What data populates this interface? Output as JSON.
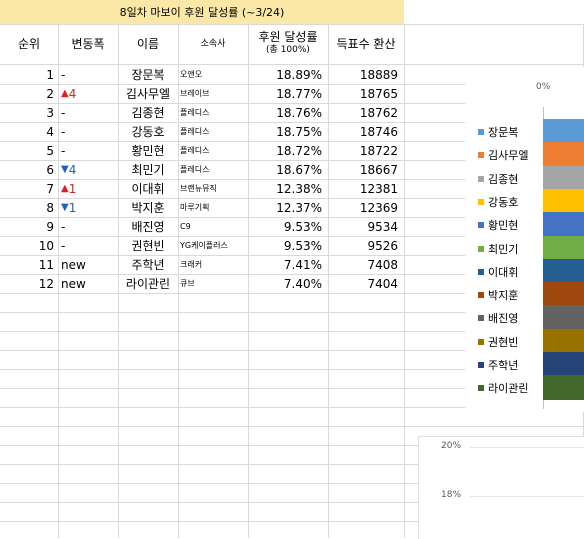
{
  "title": "8일차 마보이 후원 달성률 (~3/24)",
  "headers": {
    "rank": "순위",
    "change": "변동폭",
    "name": "이름",
    "agency": "소속사",
    "rate": "후원 달성률",
    "rate_sub": "(총 100%)",
    "votes": "득표수 환산"
  },
  "rows": [
    {
      "rank": "1",
      "change": "-",
      "dir": "",
      "name": "장문복",
      "agency": "오앤오",
      "rate": "18.89%",
      "votes": "18889"
    },
    {
      "rank": "2",
      "change": "4",
      "dir": "up",
      "name": "김사무엘",
      "agency": "브레이브",
      "rate": "18.77%",
      "votes": "18765"
    },
    {
      "rank": "3",
      "change": "-",
      "dir": "",
      "name": "김종현",
      "agency": "플레디스",
      "rate": "18.76%",
      "votes": "18762"
    },
    {
      "rank": "4",
      "change": "-",
      "dir": "",
      "name": "강동호",
      "agency": "플레디스",
      "rate": "18.75%",
      "votes": "18746"
    },
    {
      "rank": "5",
      "change": "-",
      "dir": "",
      "name": "황민현",
      "agency": "플레디스",
      "rate": "18.72%",
      "votes": "18722"
    },
    {
      "rank": "6",
      "change": "4",
      "dir": "down",
      "name": "최민기",
      "agency": "플레디스",
      "rate": "18.67%",
      "votes": "18667"
    },
    {
      "rank": "7",
      "change": "1",
      "dir": "up",
      "name": "이대휘",
      "agency": "브랜뉴뮤직",
      "rate": "12.38%",
      "votes": "12381"
    },
    {
      "rank": "8",
      "change": "1",
      "dir": "down",
      "name": "박지훈",
      "agency": "마루기획",
      "rate": "12.37%",
      "votes": "12369"
    },
    {
      "rank": "9",
      "change": "-",
      "dir": "",
      "name": "배진영",
      "agency": "C9",
      "rate": "9.53%",
      "votes": "9534"
    },
    {
      "rank": "10",
      "change": "-",
      "dir": "",
      "name": "권현빈",
      "agency": "YG케이플러스",
      "rate": "9.53%",
      "votes": "9526"
    },
    {
      "rank": "11",
      "change": "new",
      "dir": "",
      "name": "주학년",
      "agency": "크래커",
      "rate": "7.41%",
      "votes": "7408"
    },
    {
      "rank": "12",
      "change": "new",
      "dir": "",
      "name": "라이관린",
      "agency": "큐브",
      "rate": "7.40%",
      "votes": "7404"
    }
  ],
  "chart": {
    "axis_zero": "0%",
    "legend": [
      {
        "name": "장문복",
        "color": "#5b9bd5"
      },
      {
        "name": "김사무엘",
        "color": "#ed7d31"
      },
      {
        "name": "김종현",
        "color": "#a5a5a5"
      },
      {
        "name": "강동호",
        "color": "#ffc000"
      },
      {
        "name": "황민현",
        "color": "#4472c4"
      },
      {
        "name": "최민기",
        "color": "#70ad47"
      },
      {
        "name": "이대휘",
        "color": "#255e91"
      },
      {
        "name": "박지훈",
        "color": "#9e480e"
      },
      {
        "name": "배진영",
        "color": "#636363"
      },
      {
        "name": "권현빈",
        "color": "#997300"
      },
      {
        "name": "주학년",
        "color": "#264478"
      },
      {
        "name": "라이관린",
        "color": "#43682b"
      }
    ]
  },
  "chart2": {
    "ticks": [
      "20%",
      "18%"
    ]
  }
}
